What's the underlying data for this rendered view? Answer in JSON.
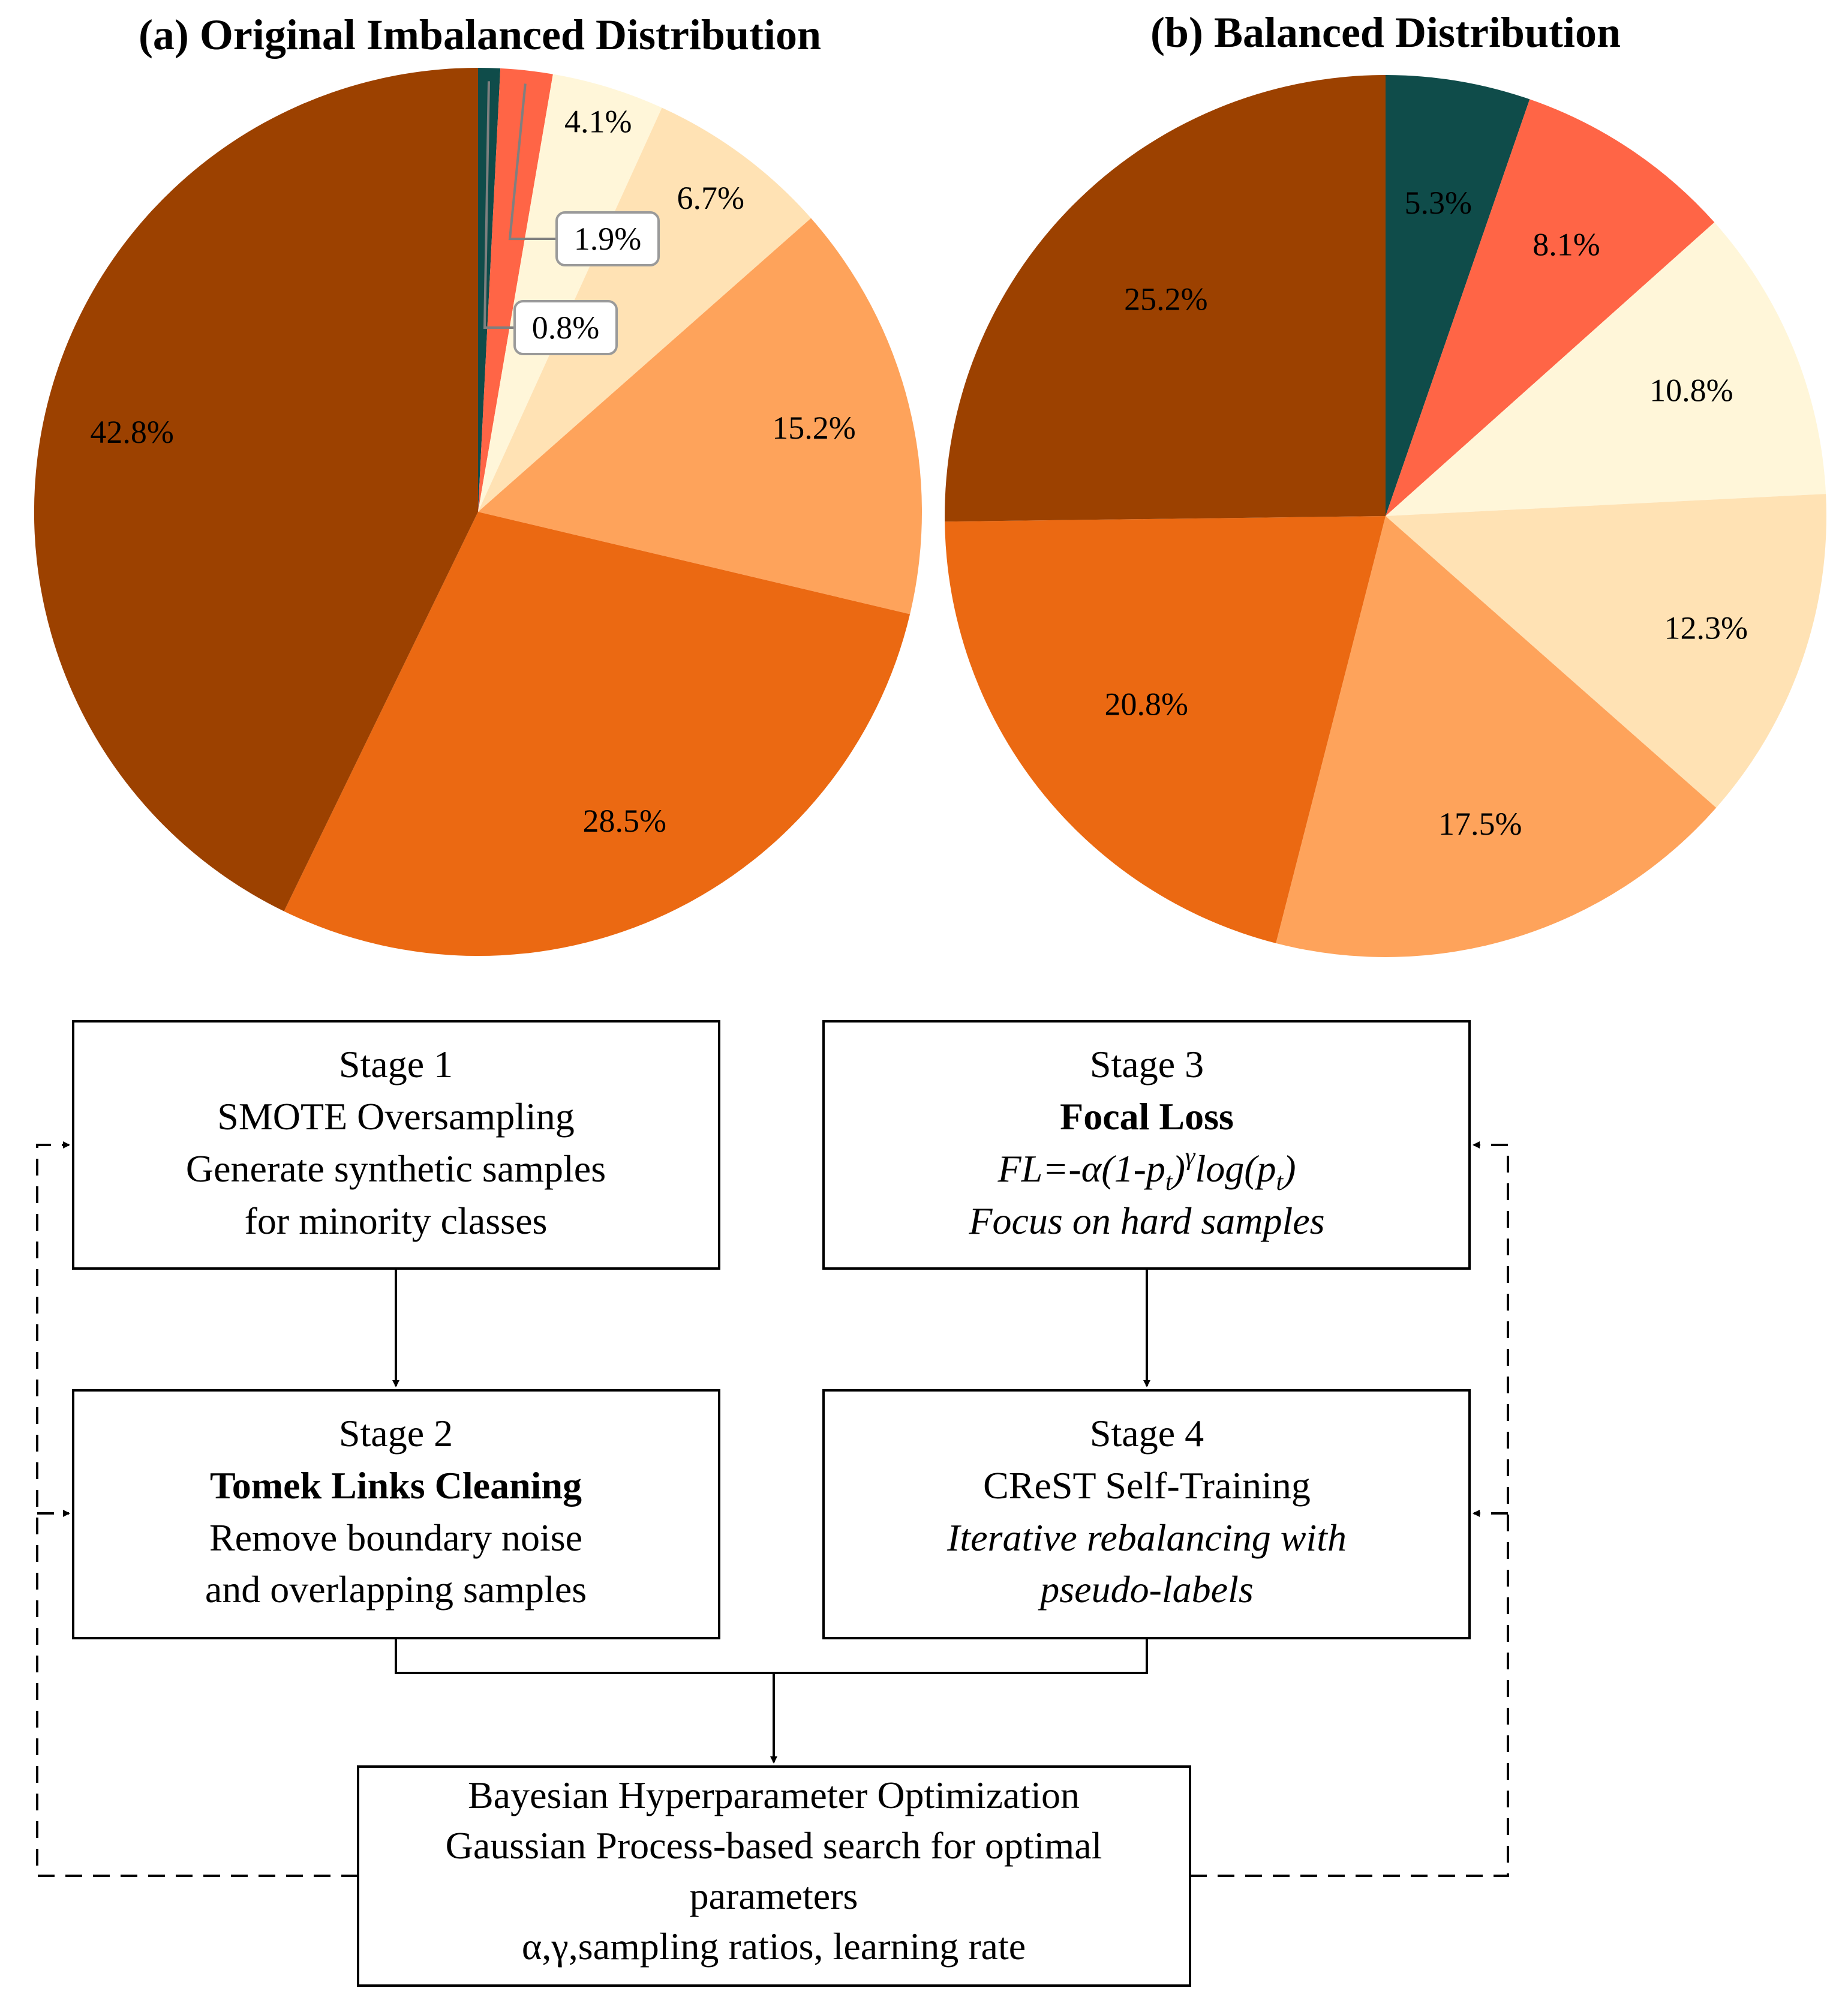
{
  "chart_data": [
    {
      "type": "pie",
      "title": "(a) Original Imbalanced Distribution",
      "values": [
        0.8,
        1.9,
        4.1,
        6.7,
        15.2,
        28.5,
        42.8
      ],
      "labels": [
        "0.8%",
        "1.9%",
        "4.1%",
        "6.7%",
        "15.2%",
        "28.5%",
        "42.8%"
      ],
      "colors": [
        "#0f4c4a",
        "#ff6546",
        "#fff6d9",
        "#ffe2b4",
        "#fea35b",
        "#eb6912",
        "#9c4100"
      ],
      "start": "12 o'clock, clockwise"
    },
    {
      "type": "pie",
      "title": "(b) Balanced Distribution",
      "values": [
        5.3,
        8.1,
        10.8,
        12.3,
        17.5,
        20.8,
        25.2
      ],
      "labels": [
        "5.3%",
        "8.1%",
        "10.8%",
        "12.3%",
        "17.5%",
        "20.8%",
        "25.2%"
      ],
      "colors": [
        "#0f4c4a",
        "#ff6546",
        "#fff6d9",
        "#ffe2b4",
        "#fea35b",
        "#eb6912",
        "#9c4100"
      ],
      "start": "12 o'clock, clockwise"
    }
  ],
  "flowchart": {
    "stage1": {
      "heading": "Stage 1",
      "line1": "SMOTE Oversampling",
      "line2": "Generate synthetic samples",
      "line3": "for minority classes"
    },
    "stage2": {
      "heading": "Stage 2",
      "line1": "Tomek Links Cleaning",
      "line2": "Remove boundary noise",
      "line3": "and overlapping samples"
    },
    "stage3": {
      "heading": "Stage 3",
      "line1": "Focal Loss",
      "line3": "Focus on hard samples",
      "formula": {
        "p1": "FL=-α(1-p",
        "sub": "t",
        "p2": ")",
        "sup": "γ",
        "p3": "log(p",
        "p4": ")"
      }
    },
    "stage4": {
      "heading": "Stage 4",
      "line1": "CReST Self-Training",
      "line2": "Iterative rebalancing with",
      "line3": "pseudo-labels"
    },
    "bayes": {
      "line1": "Bayesian Hyperparameter Optimization",
      "line2": "Gaussian Process-based search for optimal",
      "line3": "parameters",
      "line4": "α,γ,sampling ratios, learning rate"
    }
  }
}
